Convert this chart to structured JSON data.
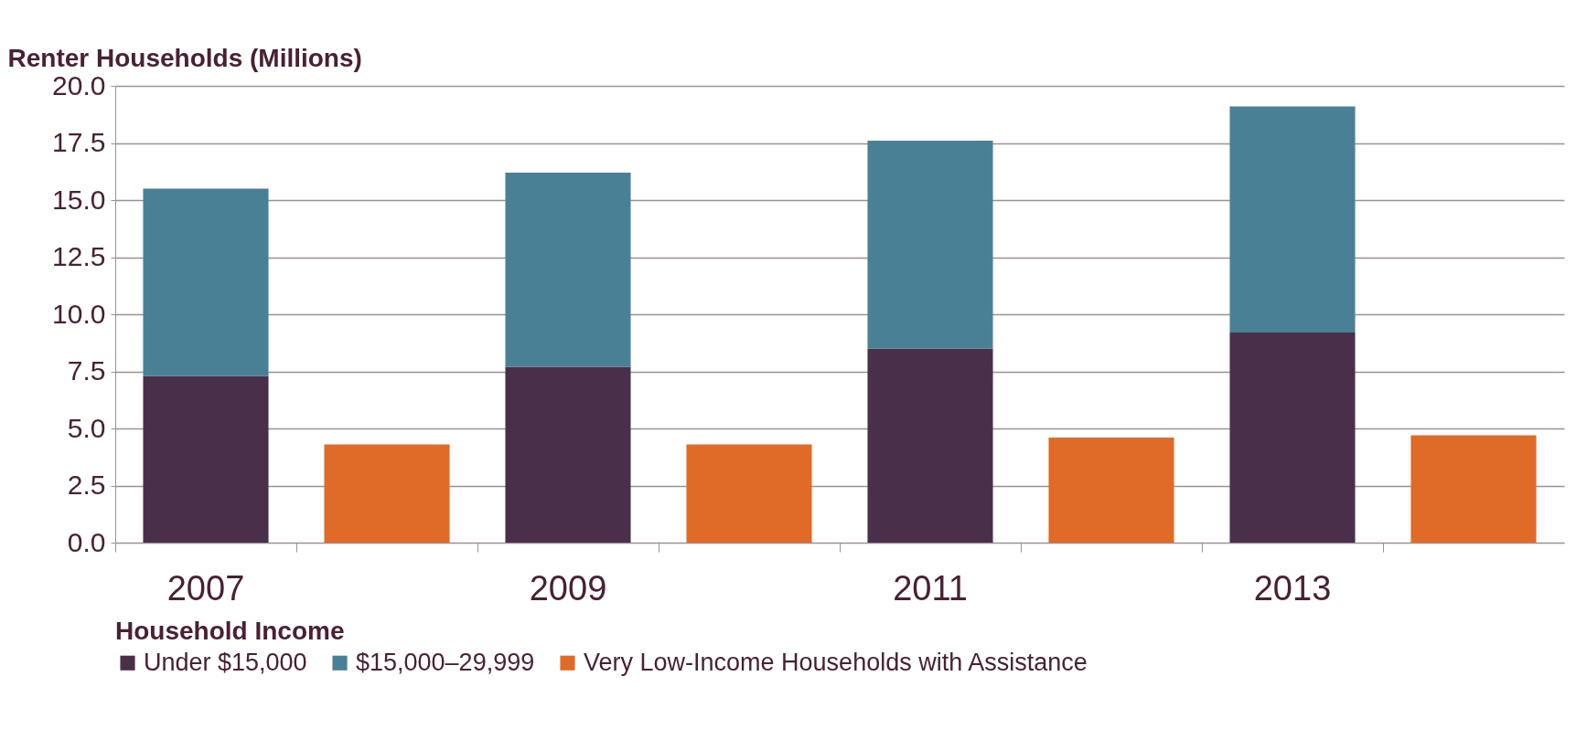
{
  "chart_data": {
    "type": "bar",
    "stacked": true,
    "ylabel": "Renter Households (Millions)",
    "legend_title": "Household Income",
    "categories": [
      "2007",
      null,
      "2009",
      null,
      "2011",
      null,
      "2013",
      null
    ],
    "series": [
      {
        "name": "Under $15,000",
        "color": "#4a2f4a",
        "values": [
          7.3,
          null,
          7.7,
          null,
          8.5,
          null,
          9.2,
          null
        ]
      },
      {
        "name": "$15,000–29,999",
        "color": "#4a8096",
        "values": [
          8.2,
          null,
          8.5,
          null,
          9.1,
          null,
          9.9,
          null
        ]
      },
      {
        "name": "Very Low-Income Households with Assistance",
        "color": "#e06a28",
        "values": [
          null,
          4.3,
          null,
          4.3,
          null,
          4.6,
          null,
          4.7
        ]
      }
    ],
    "ylim": [
      0,
      20
    ],
    "yticks": [
      {
        "value": 0,
        "label": "0.0"
      },
      {
        "value": 2.5,
        "label": "2.5"
      },
      {
        "value": 5,
        "label": "5.0"
      },
      {
        "value": 7.5,
        "label": "7.5"
      },
      {
        "value": 10,
        "label": "10.0"
      },
      {
        "value": 12.5,
        "label": "12.5"
      },
      {
        "value": 15,
        "label": "15.0"
      },
      {
        "value": 17.5,
        "label": "17.5"
      },
      {
        "value": 20,
        "label": "20.0"
      }
    ],
    "grid": "y",
    "legend": "bottom"
  }
}
